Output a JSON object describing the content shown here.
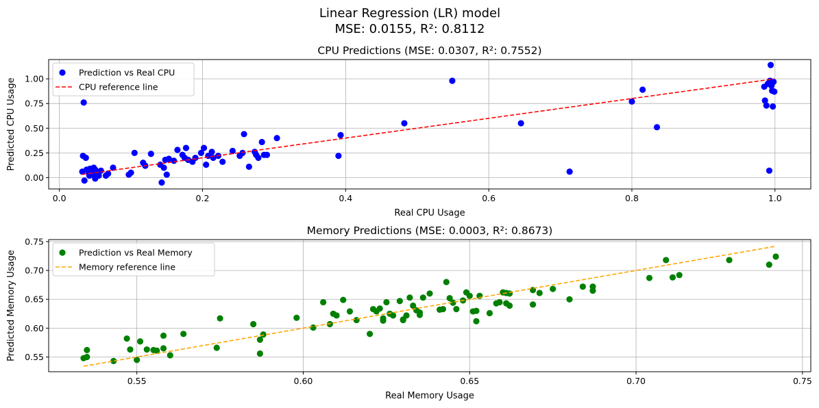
{
  "figure": {
    "suptitle_line1": "Linear Regression (LR) model",
    "suptitle_line2": "MSE: 0.0155, R²: 0.8112"
  },
  "chart_data": [
    {
      "type": "scatter",
      "title": "CPU Predictions (MSE: 0.0307, R²: 0.7552)",
      "xlabel": "Real CPU Usage",
      "ylabel": "Predicted CPU Usage",
      "xlim": [
        -0.015,
        1.05
      ],
      "ylim": [
        -0.115,
        1.195
      ],
      "xticks": [
        0.0,
        0.2,
        0.4,
        0.6,
        0.8,
        1.0
      ],
      "xtick_labels": [
        "0.0",
        "0.2",
        "0.4",
        "0.6",
        "0.8",
        "1.0"
      ],
      "yticks": [
        0.0,
        0.25,
        0.5,
        0.75,
        1.0
      ],
      "ytick_labels": [
        "0.00",
        "0.25",
        "0.50",
        "0.75",
        "1.00"
      ],
      "grid": true,
      "legend_position": "top-left",
      "series": [
        {
          "name": "Prediction vs Real CPU",
          "kind": "points",
          "color": "#0000ff",
          "x": [
            0.032,
            0.033,
            0.034,
            0.035,
            0.037,
            0.038,
            0.04,
            0.041,
            0.042,
            0.043,
            0.045,
            0.046,
            0.047,
            0.048,
            0.05,
            0.05,
            0.052,
            0.055,
            0.058,
            0.065,
            0.068,
            0.075,
            0.097,
            0.1,
            0.105,
            0.117,
            0.12,
            0.128,
            0.141,
            0.143,
            0.146,
            0.148,
            0.15,
            0.153,
            0.16,
            0.165,
            0.172,
            0.175,
            0.177,
            0.18,
            0.186,
            0.19,
            0.198,
            0.202,
            0.205,
            0.208,
            0.213,
            0.215,
            0.222,
            0.228,
            0.242,
            0.252,
            0.256,
            0.258,
            0.265,
            0.273,
            0.275,
            0.278,
            0.283,
            0.286,
            0.29,
            0.304,
            0.39,
            0.393,
            0.482,
            0.549,
            0.645,
            0.713,
            0.8,
            0.815,
            0.835,
            0.985,
            0.986,
            0.988,
            0.99,
            0.992,
            0.993,
            0.994,
            0.995,
            0.996,
            0.997,
            0.998,
            0.999
          ],
          "y": [
            0.06,
            0.22,
            0.76,
            -0.03,
            0.2,
            0.08,
            0.07,
            0.05,
            0.02,
            0.09,
            0.04,
            0.03,
            0.06,
            0.1,
            -0.01,
            0.08,
            0.05,
            0.02,
            0.07,
            0.02,
            0.04,
            0.1,
            0.03,
            0.05,
            0.25,
            0.15,
            0.12,
            0.24,
            0.13,
            -0.05,
            0.1,
            0.18,
            0.03,
            0.19,
            0.17,
            0.28,
            0.23,
            0.2,
            0.3,
            0.18,
            0.16,
            0.2,
            0.25,
            0.3,
            0.13,
            0.22,
            0.26,
            0.2,
            0.22,
            0.16,
            0.27,
            0.22,
            0.25,
            0.44,
            0.11,
            0.26,
            0.23,
            0.2,
            0.36,
            0.23,
            0.23,
            0.4,
            0.22,
            0.43,
            0.55,
            0.98,
            0.55,
            0.06,
            0.77,
            0.89,
            0.51,
            0.92,
            0.78,
            0.73,
            0.95,
            0.07,
            0.98,
            1.14,
            0.93,
            0.88,
            0.72,
            0.97,
            0.87
          ]
        },
        {
          "name": "CPU reference line",
          "kind": "dashed-line",
          "color": "#ff0000",
          "x": [
            0.032,
            0.999
          ],
          "y": [
            0.032,
            0.999
          ]
        }
      ]
    },
    {
      "type": "scatter",
      "title": "Memory Predictions (MSE: 0.0003, R²: 0.8673)",
      "xlabel": "Real Memory Usage",
      "ylabel": "Predicted Memory Usage",
      "xlim": [
        0.5235,
        0.7525
      ],
      "ylim": [
        0.5245,
        0.7535
      ],
      "xticks": [
        0.55,
        0.6,
        0.65,
        0.7,
        0.75
      ],
      "xtick_labels": [
        "0.55",
        "0.60",
        "0.65",
        "0.70",
        "0.75"
      ],
      "yticks": [
        0.55,
        0.6,
        0.65,
        0.7,
        0.75
      ],
      "ytick_labels": [
        "0.55",
        "0.60",
        "0.65",
        "0.70",
        "0.75"
      ],
      "grid": true,
      "legend_position": "top-left",
      "series": [
        {
          "name": "Prediction vs Real Memory",
          "kind": "points",
          "color": "#008000",
          "x": [
            0.534,
            0.535,
            0.535,
            0.543,
            0.547,
            0.548,
            0.55,
            0.551,
            0.553,
            0.555,
            0.556,
            0.558,
            0.558,
            0.56,
            0.564,
            0.574,
            0.575,
            0.585,
            0.587,
            0.587,
            0.588,
            0.598,
            0.603,
            0.606,
            0.608,
            0.609,
            0.61,
            0.612,
            0.614,
            0.616,
            0.62,
            0.621,
            0.622,
            0.623,
            0.624,
            0.624,
            0.625,
            0.626,
            0.627,
            0.629,
            0.63,
            0.63,
            0.631,
            0.632,
            0.633,
            0.634,
            0.635,
            0.635,
            0.636,
            0.638,
            0.641,
            0.642,
            0.643,
            0.644,
            0.645,
            0.646,
            0.648,
            0.649,
            0.65,
            0.651,
            0.652,
            0.652,
            0.653,
            0.656,
            0.658,
            0.659,
            0.66,
            0.661,
            0.661,
            0.662,
            0.662,
            0.669,
            0.669,
            0.671,
            0.675,
            0.68,
            0.684,
            0.687,
            0.687,
            0.704,
            0.709,
            0.711,
            0.713,
            0.728,
            0.74,
            0.742
          ],
          "y": [
            0.548,
            0.562,
            0.55,
            0.543,
            0.582,
            0.563,
            0.545,
            0.577,
            0.563,
            0.562,
            0.561,
            0.565,
            0.587,
            0.553,
            0.59,
            0.566,
            0.617,
            0.607,
            0.556,
            0.58,
            0.589,
            0.618,
            0.601,
            0.645,
            0.607,
            0.625,
            0.622,
            0.649,
            0.629,
            0.614,
            0.59,
            0.633,
            0.629,
            0.634,
            0.613,
            0.617,
            0.645,
            0.625,
            0.622,
            0.647,
            0.614,
            0.615,
            0.622,
            0.653,
            0.639,
            0.631,
            0.627,
            0.623,
            0.653,
            0.66,
            0.632,
            0.633,
            0.68,
            0.652,
            0.644,
            0.633,
            0.648,
            0.662,
            0.656,
            0.629,
            0.63,
            0.612,
            0.656,
            0.626,
            0.643,
            0.645,
            0.662,
            0.643,
            0.661,
            0.639,
            0.66,
            0.641,
            0.666,
            0.661,
            0.668,
            0.65,
            0.672,
            0.665,
            0.672,
            0.687,
            0.718,
            0.688,
            0.692,
            0.718,
            0.71,
            0.724
          ]
        },
        {
          "name": "Memory reference line",
          "kind": "dashed-line",
          "color": "#ffa500",
          "x": [
            0.534,
            0.742
          ],
          "y": [
            0.534,
            0.742
          ]
        }
      ]
    }
  ]
}
